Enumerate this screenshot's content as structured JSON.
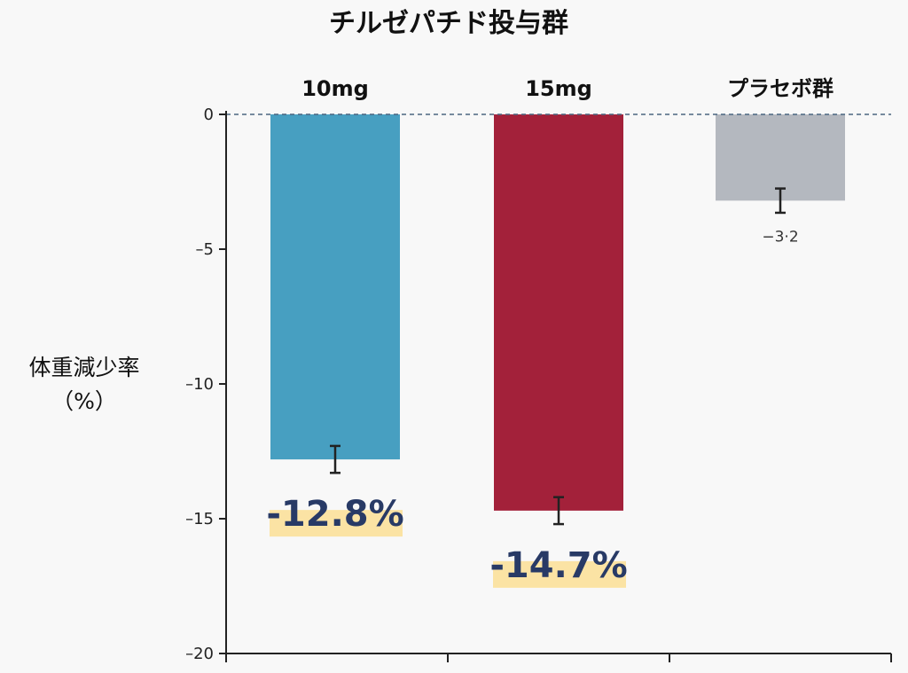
{
  "chart_data": {
    "type": "bar",
    "title": "チルゼパチド投与群",
    "ylabel_line1": "体重減少率",
    "ylabel_line2": "（%）",
    "categories": [
      "10mg",
      "15mg",
      "プラセボ群"
    ],
    "values": [
      -12.8,
      -14.7,
      -3.2
    ],
    "error": [
      0.5,
      0.5,
      0.45
    ],
    "value_labels": [
      "-12.8%",
      "-14.7%",
      "−3·2"
    ],
    "ylim": [
      -20,
      0
    ],
    "yticks": [
      0,
      -5,
      -10,
      -15,
      -20
    ],
    "ytick_labels": [
      "0",
      "–5",
      "–10",
      "–15",
      "–20"
    ],
    "zero_line": "dashed",
    "highlighted_labels": [
      true,
      true,
      false
    ]
  },
  "colors": {
    "bars": [
      "#479fc1",
      "#a3213a",
      "#b4b8bf"
    ],
    "highlight": "#fbe3a4",
    "value_text": "#283a66",
    "axis": "#222222",
    "zero_line": "#4a6580"
  }
}
